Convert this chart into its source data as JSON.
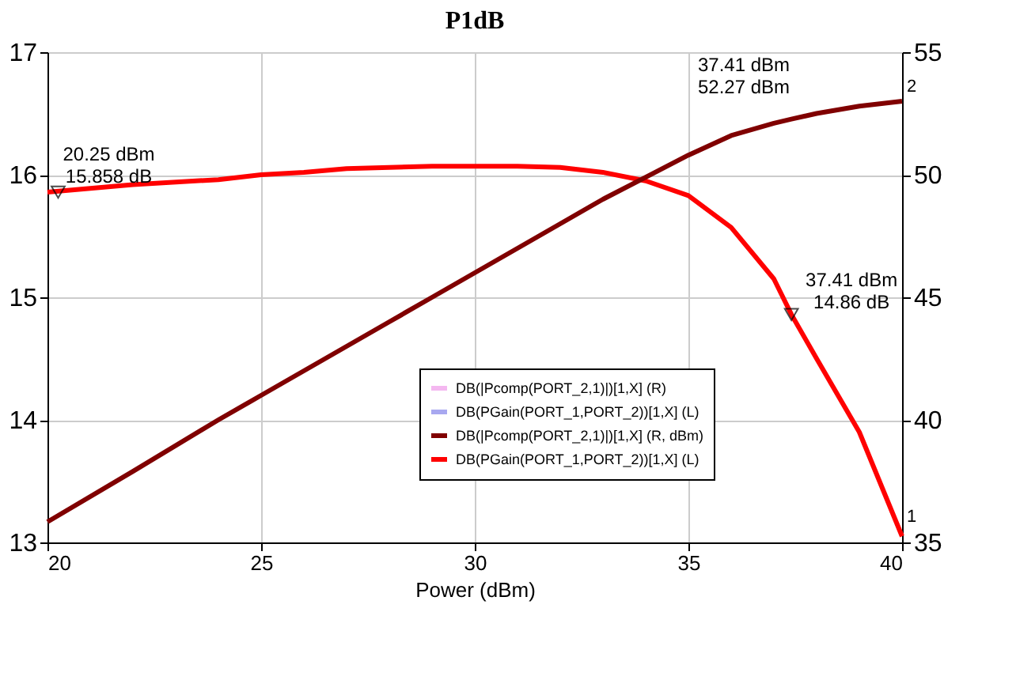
{
  "chart_data": {
    "type": "line",
    "title": "P1dB",
    "xlabel": "Power (dBm)",
    "x": [
      20,
      22,
      24,
      25,
      26,
      27,
      28,
      29,
      30,
      31,
      32,
      33,
      34,
      35,
      36,
      37,
      37.41,
      38,
      39,
      40
    ],
    "xlim": [
      20,
      40
    ],
    "xticks": [
      20,
      25,
      30,
      35,
      40
    ],
    "ylim": [
      13,
      17
    ],
    "yticks": [
      13,
      14,
      15,
      16,
      17
    ],
    "y2lim": [
      35,
      55
    ],
    "y2ticks": [
      35,
      40,
      45,
      50,
      55
    ],
    "grid": true,
    "legend": "bottom right",
    "line_style": "solid",
    "marker": "none",
    "series": [
      {
        "name": "DB(|Pcomp(PORT_2,1)|)[1,X] (R)",
        "color": "#f4b8f0",
        "axis": "y2",
        "values": [
          null,
          null,
          null,
          null,
          null,
          null,
          null,
          null,
          null,
          null,
          null,
          null,
          null,
          null,
          null,
          null,
          null,
          null,
          null,
          null
        ]
      },
      {
        "name": "DB(PGain(PORT_1,PORT_2))[1,X] (L)",
        "color": "#a8a8f0",
        "values": [
          null,
          null,
          null,
          null,
          null,
          null,
          null,
          null,
          null,
          null,
          null,
          null,
          null,
          null,
          null,
          null,
          null,
          null,
          null,
          null
        ]
      },
      {
        "name": "DB(|Pcomp(PORT_2,1)|)[1,X] (R, dBm)",
        "color": "#800000",
        "axis": "y2",
        "values": [
          35.84,
          37.9,
          40.0,
          41.0,
          42.0,
          43.0,
          44.0,
          45.0,
          46.0,
          47.0,
          48.0,
          49.0,
          49.9,
          50.8,
          51.6,
          52.1,
          52.27,
          52.5,
          52.8,
          53.0
        ]
      },
      {
        "name": "DB(PGain(PORT_1,PORT_2))[1,X] (L)",
        "color": "#ff0000",
        "values": [
          15.858,
          15.92,
          15.96,
          16.0,
          16.02,
          16.05,
          16.06,
          16.07,
          16.07,
          16.07,
          16.06,
          16.02,
          15.95,
          15.83,
          15.57,
          15.15,
          14.86,
          14.5,
          13.9,
          13.05
        ]
      }
    ],
    "annotations": [
      {
        "text": "20.25 dBm\n15.858 dB",
        "x": 20.25,
        "y": 15.858
      },
      {
        "text": "37.41 dBm\n14.86 dB",
        "x": 37.41,
        "y": 14.86
      },
      "37.41 dBm\n52.27 dBm",
      "2",
      "1"
    ]
  }
}
